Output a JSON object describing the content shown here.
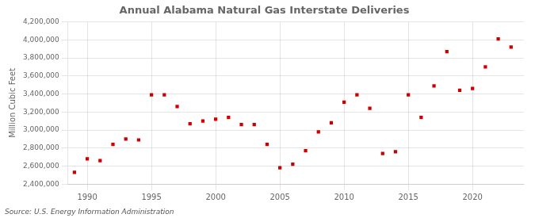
{
  "chart_data": {
    "type": "scatter",
    "title": "Annual Alabama Natural Gas Interstate Deliveries",
    "ylabel": "Million Cubic Feet",
    "annotation": "Source: U.S. Energy Information Administration",
    "x": [
      1989,
      1990,
      1991,
      1992,
      1993,
      1994,
      1995,
      1996,
      1997,
      1998,
      1999,
      2000,
      2001,
      2002,
      2003,
      2004,
      2005,
      2006,
      2007,
      2008,
      2009,
      2010,
      2011,
      2012,
      2013,
      2014,
      2015,
      2016,
      2017,
      2018,
      2019,
      2020,
      2021,
      2022,
      2023
    ],
    "values": [
      2530000,
      2680000,
      2660000,
      2840000,
      2900000,
      2890000,
      3390000,
      3390000,
      3260000,
      3070000,
      3100000,
      3120000,
      3140000,
      3060000,
      3060000,
      2840000,
      2580000,
      2620000,
      2770000,
      2980000,
      3080000,
      3310000,
      3390000,
      3240000,
      2740000,
      2760000,
      3390000,
      3140000,
      3490000,
      3870000,
      3440000,
      3460000,
      3700000,
      4010000,
      3920000
    ],
    "color": "#cc0000",
    "marker": "square",
    "xlim": [
      1988.5,
      2024
    ],
    "xticks": [
      1990,
      1995,
      2000,
      2005,
      2010,
      2015,
      2020
    ],
    "ylim": [
      2400000,
      4200000
    ],
    "yticks": [
      {
        "value": 2400000,
        "label": "2,400,000"
      },
      {
        "value": 2600000,
        "label": "2,600,000"
      },
      {
        "value": 2800000,
        "label": "2,800,000"
      },
      {
        "value": 3000000,
        "label": "3,000,000"
      },
      {
        "value": 3200000,
        "label": "3,200,000"
      },
      {
        "value": 3400000,
        "label": "3,400,000"
      },
      {
        "value": 3600000,
        "label": "3,600,000"
      },
      {
        "value": 3800000,
        "label": "3,800,000"
      },
      {
        "value": 4000000,
        "label": "4,000,000"
      },
      {
        "value": 4200000,
        "label": "4,200,000"
      }
    ],
    "grid": true
  }
}
